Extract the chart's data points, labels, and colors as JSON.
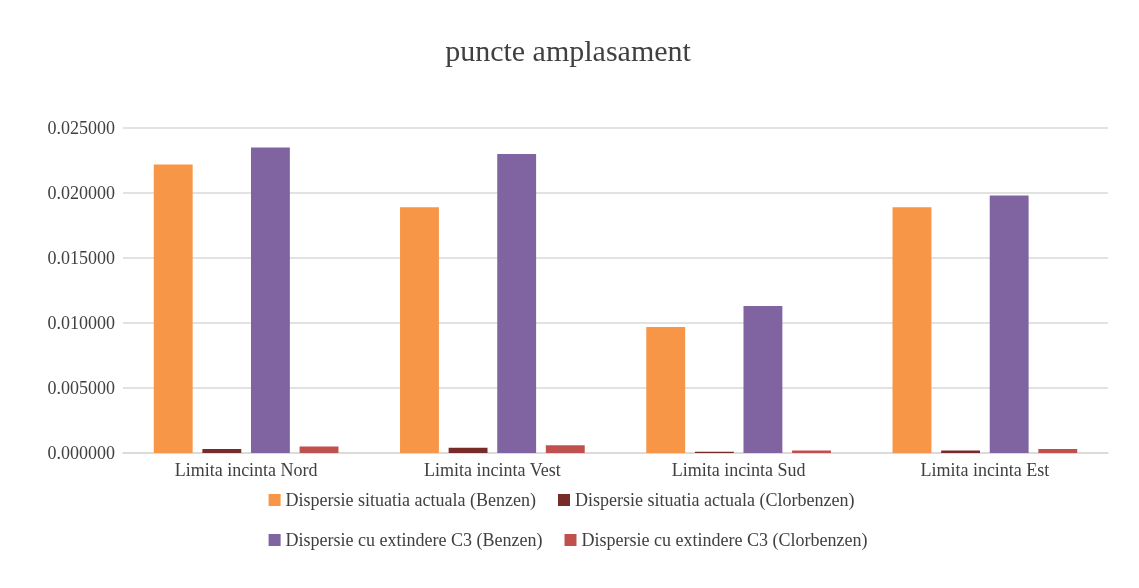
{
  "chart_data": {
    "type": "bar",
    "title": "puncte amplasament",
    "categories": [
      "Limita incinta Nord",
      "Limita incinta Vest",
      "Limita incinta Sud",
      "Limita incinta Est"
    ],
    "series": [
      {
        "name": "Dispersie situatia actuala (Benzen)",
        "color": "#f79646",
        "values": [
          0.0222,
          0.0189,
          0.0097,
          0.0189
        ]
      },
      {
        "name": "Dispersie situatia actuala (Clorbenzen)",
        "color": "#772c2a",
        "values": [
          0.0003,
          0.0004,
          0.0001,
          0.0002
        ]
      },
      {
        "name": "Dispersie cu extindere C3 (Benzen)",
        "color": "#8064a2",
        "values": [
          0.0235,
          0.023,
          0.0113,
          0.0198
        ]
      },
      {
        "name": "Dispersie cu extindere C3 (Clorbenzen)",
        "color": "#c0504d",
        "values": [
          0.0005,
          0.0006,
          0.0002,
          0.0003
        ]
      }
    ],
    "ylim": [
      0,
      0.025
    ],
    "yticks": [
      {
        "value": 0,
        "label": "0.000000"
      },
      {
        "value": 0.005,
        "label": "0.005000"
      },
      {
        "value": 0.01,
        "label": "0.010000"
      },
      {
        "value": 0.015,
        "label": "0.015000"
      },
      {
        "value": 0.02,
        "label": "0.020000"
      },
      {
        "value": 0.025,
        "label": "0.025000"
      }
    ],
    "grid": "y",
    "legend": "bottom"
  }
}
